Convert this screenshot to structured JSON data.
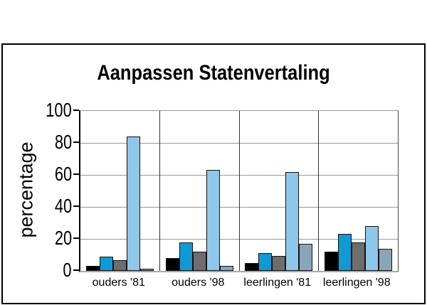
{
  "title": "Aanpassen Statenvertaling",
  "chart_data": {
    "type": "bar",
    "title": "Aanpassen Statenvertaling",
    "xlabel": "",
    "ylabel": "percentage",
    "ylim": [
      0,
      100
    ],
    "yticks": [
      0,
      20,
      40,
      60,
      80,
      100
    ],
    "grid": true,
    "legend_position": "none",
    "categories": [
      "ouders '81",
      "ouders '98",
      "leerlingen '81",
      "leerlingen '98"
    ],
    "series": [
      {
        "name": "series-black",
        "color": "#000000",
        "values": [
          3,
          8,
          5,
          12
        ]
      },
      {
        "name": "series-blue",
        "color": "#1199D4",
        "values": [
          9,
          18,
          11,
          23
        ]
      },
      {
        "name": "series-dark-gray",
        "color": "#6E6E6E",
        "values": [
          6.5,
          12,
          9.5,
          18
        ]
      },
      {
        "name": "series-light-blue",
        "color": "#8FC7EA",
        "values": [
          84,
          63,
          62,
          28
        ]
      },
      {
        "name": "series-slate-blue-gray",
        "color": "#8BA5B8",
        "values": [
          1.5,
          3,
          17,
          14
        ]
      }
    ]
  },
  "colors": {
    "background": "#FFFFFF",
    "frame_border": "#000000",
    "gridline": "#999999",
    "panel_divider": "#333333",
    "axis": "#000000",
    "bar_outline": "#111111"
  }
}
